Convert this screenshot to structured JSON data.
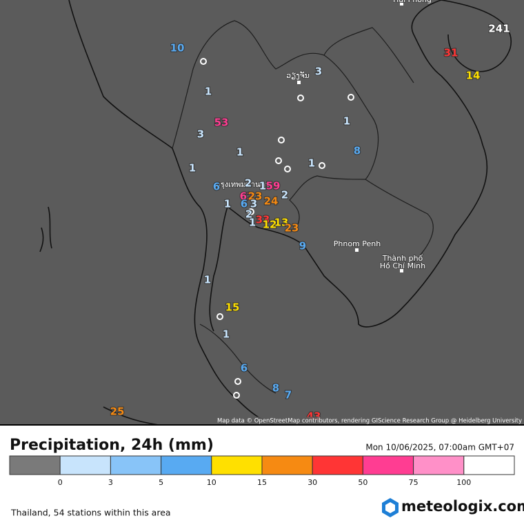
{
  "map": {
    "stations": [
      10,
      241,
      31,
      14,
      3,
      1,
      53,
      3,
      1,
      8,
      1,
      1,
      1,
      6,
      2,
      1,
      59,
      62,
      23,
      1,
      6,
      3,
      24,
      2,
      2,
      33,
      1,
      12,
      13,
      23,
      9,
      1,
      15,
      1,
      6,
      8,
      7,
      25,
      43
    ],
    "cities": [
      "Hải Phòng",
      "ວຽງຈັນ",
      "กรุงเทพมหานคร",
      "Phnom Penh",
      "Thành phố",
      "Hồ Chí Minh"
    ],
    "attribution": "Map data © OpenStreetMap contributors, rendering GIScience Research Group @ Heidelberg University"
  },
  "header": {
    "title": "Precipitation, 24h (mm)",
    "datetime": "Mon 10/06/2025, 07:00am GMT+07"
  },
  "legend": {
    "colors": [
      "#7a7a7a",
      "#c8e4fc",
      "#88c4f8",
      "#58aaf2",
      "#ffe000",
      "#f68a12",
      "#ff3535",
      "#ff3d92",
      "#ff90c8",
      "#ffffff"
    ],
    "ticks": [
      0,
      3,
      5,
      10,
      15,
      30,
      50,
      75,
      100
    ]
  },
  "footer": {
    "stations_note": "Thailand, 54 stations within this area",
    "logo": "meteologix.com"
  }
}
